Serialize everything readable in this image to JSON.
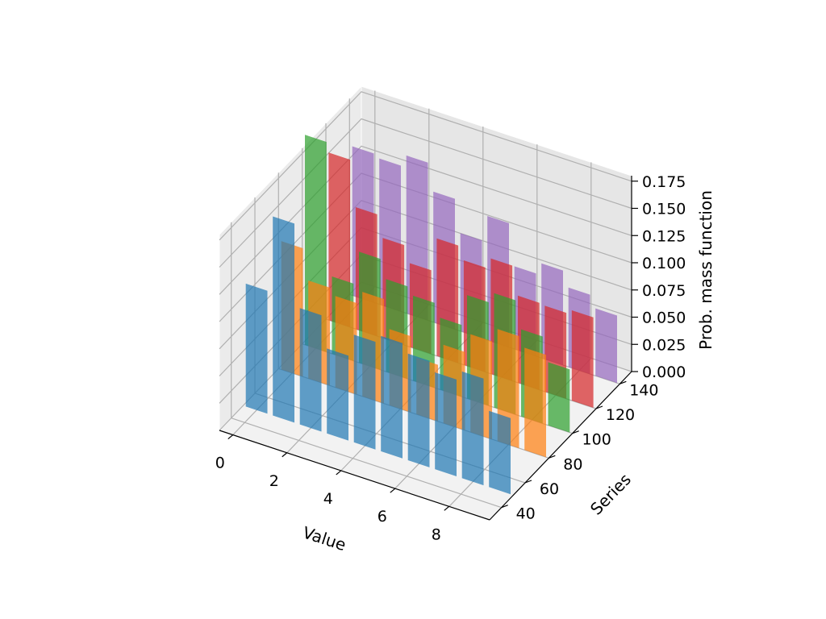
{
  "chart_data": {
    "type": "bar3d",
    "title": "",
    "xlabel": "Value",
    "ylabel": "Series",
    "zlabel": "Prob. mass function",
    "x_ticks": [
      "0",
      "2",
      "4",
      "6",
      "8"
    ],
    "y_ticks": [
      "40",
      "60",
      "80",
      "100",
      "120",
      "140"
    ],
    "z_ticks": [
      "0.000",
      "0.025",
      "0.050",
      "0.075",
      "0.100",
      "0.125",
      "0.150",
      "0.175"
    ],
    "xlim": [
      -0.5,
      9.5
    ],
    "ylim": [
      30,
      150
    ],
    "zlim": [
      0,
      0.18
    ],
    "grid": true,
    "categories": [
      0,
      1,
      2,
      3,
      4,
      5,
      6,
      7,
      8,
      9
    ],
    "series": [
      {
        "y": 50,
        "color": "#1f77b4",
        "values": [
          0.113,
          0.183,
          0.107,
          0.078,
          0.099,
          0.106,
          0.098,
          0.089,
          0.098,
          0.07
        ]
      },
      {
        "y": 80,
        "color": "#ff7f0e",
        "values": [
          0.118,
          0.09,
          0.084,
          0.096,
          0.07,
          0.052,
          0.072,
          0.09,
          0.103,
          0.094
        ]
      },
      {
        "y": 100,
        "color": "#2ca02c",
        "values": [
          0.193,
          0.071,
          0.102,
          0.085,
          0.078,
          0.066,
          0.095,
          0.105,
          0.08,
          0.058
        ]
      },
      {
        "y": 120,
        "color": "#d62728",
        "values": [
          0.154,
          0.112,
          0.092,
          0.077,
          0.108,
          0.096,
          0.106,
          0.08,
          0.079,
          0.083
        ]
      },
      {
        "y": 140,
        "color": "#9467bd",
        "values": [
          0.137,
          0.134,
          0.145,
          0.12,
          0.09,
          0.114,
          0.076,
          0.087,
          0.073,
          0.062
        ]
      }
    ]
  }
}
